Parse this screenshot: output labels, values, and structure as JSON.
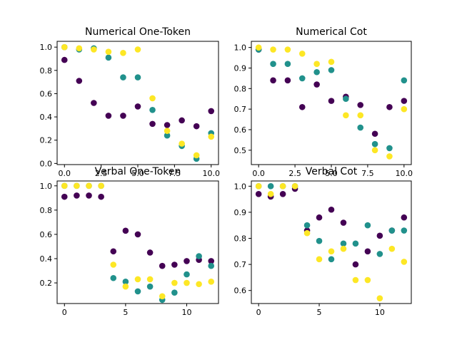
{
  "chart_data": [
    {
      "type": "scatter",
      "title": "Numerical One-Token",
      "xlim": [
        -0.5,
        10.5
      ],
      "ylim": [
        -0.01,
        1.05
      ],
      "xticks": [
        0.0,
        2.5,
        5.0,
        7.5,
        10.0
      ],
      "xtick_labels": [
        "0.0",
        "2.5",
        "5.0",
        "7.5",
        "10.0"
      ],
      "yticks": [
        0.0,
        0.2,
        0.4,
        0.6,
        0.8,
        1.0
      ],
      "ytick_labels": [
        "0.0",
        "0.2",
        "0.4",
        "0.6",
        "0.8",
        "1.0"
      ],
      "series": [
        {
          "color": "#440154",
          "x": [
            0,
            1,
            2,
            3,
            4,
            5,
            6,
            7,
            8,
            9,
            10
          ],
          "y": [
            0.89,
            0.71,
            0.52,
            0.41,
            0.41,
            0.49,
            0.34,
            0.33,
            0.37,
            0.32,
            0.45
          ]
        },
        {
          "color": "#21918c",
          "x": [
            0,
            1,
            2,
            3,
            4,
            5,
            6,
            7,
            8,
            9,
            10
          ],
          "y": [
            1.0,
            0.98,
            0.99,
            0.91,
            0.74,
            0.74,
            0.46,
            0.24,
            0.15,
            0.04,
            0.26
          ]
        },
        {
          "color": "#fde725",
          "x": [
            0,
            1,
            2,
            3,
            4,
            5,
            6,
            7,
            8,
            9,
            10
          ],
          "y": [
            1.0,
            0.99,
            0.98,
            0.96,
            0.95,
            0.98,
            0.56,
            0.28,
            0.17,
            0.07,
            0.23
          ]
        }
      ]
    },
    {
      "type": "scatter",
      "title": "Numerical Cot",
      "xlim": [
        -0.5,
        10.5
      ],
      "ylim": [
        0.43,
        1.03
      ],
      "xticks": [
        0.0,
        2.5,
        5.0,
        7.5,
        10.0
      ],
      "xtick_labels": [
        "0.0",
        "2.5",
        "5.0",
        "7.5",
        "10.0"
      ],
      "yticks": [
        0.5,
        0.6,
        0.7,
        0.8,
        0.9,
        1.0
      ],
      "ytick_labels": [
        "0.5",
        "0.6",
        "0.7",
        "0.8",
        "0.9",
        "1.0"
      ],
      "series": [
        {
          "color": "#440154",
          "x": [
            0,
            1,
            2,
            3,
            4,
            5,
            6,
            7,
            8,
            9,
            10
          ],
          "y": [
            0.99,
            0.84,
            0.84,
            0.71,
            0.82,
            0.74,
            0.76,
            0.72,
            0.58,
            0.71,
            0.74
          ]
        },
        {
          "color": "#21918c",
          "x": [
            0,
            1,
            2,
            3,
            4,
            5,
            6,
            7,
            8,
            9,
            10
          ],
          "y": [
            0.99,
            0.92,
            0.92,
            0.85,
            0.88,
            0.89,
            0.75,
            0.61,
            0.53,
            0.51,
            0.84
          ]
        },
        {
          "color": "#fde725",
          "x": [
            0,
            1,
            2,
            3,
            4,
            5,
            6,
            7,
            8,
            9,
            10
          ],
          "y": [
            1.0,
            0.99,
            0.99,
            0.97,
            0.92,
            0.93,
            0.67,
            0.67,
            0.5,
            0.47,
            0.7
          ]
        }
      ]
    },
    {
      "type": "scatter",
      "title": "Verbal One-Token",
      "xlim": [
        -0.6,
        12.6
      ],
      "ylim": [
        0.03,
        1.04
      ],
      "xticks": [
        0,
        5,
        10
      ],
      "xtick_labels": [
        "0",
        "5",
        "10"
      ],
      "yticks": [
        0.2,
        0.4,
        0.6,
        0.8,
        1.0
      ],
      "ytick_labels": [
        "0.2",
        "0.4",
        "0.6",
        "0.8",
        "1.0"
      ],
      "series": [
        {
          "color": "#440154",
          "x": [
            0,
            1,
            2,
            3,
            4,
            5,
            6,
            7,
            8,
            9,
            10,
            11,
            12
          ],
          "y": [
            0.91,
            0.92,
            0.92,
            0.91,
            0.46,
            0.63,
            0.6,
            0.45,
            0.34,
            0.35,
            0.38,
            0.39,
            0.38
          ]
        },
        {
          "color": "#21918c",
          "x": [
            0,
            1,
            2,
            3,
            4,
            5,
            6,
            7,
            8,
            9,
            10,
            11,
            12
          ],
          "y": [
            1.0,
            1.0,
            1.0,
            1.0,
            0.24,
            0.21,
            0.13,
            0.17,
            0.06,
            0.12,
            0.27,
            0.42,
            0.34
          ]
        },
        {
          "color": "#fde725",
          "x": [
            0,
            1,
            2,
            3,
            4,
            5,
            6,
            7,
            8,
            9,
            10,
            11,
            12
          ],
          "y": [
            1.0,
            1.0,
            1.0,
            1.0,
            0.35,
            0.17,
            0.23,
            0.23,
            0.09,
            0.2,
            0.2,
            0.19,
            0.21
          ]
        }
      ]
    },
    {
      "type": "scatter",
      "title": "Verbal Cot",
      "xlim": [
        -0.6,
        12.6
      ],
      "ylim": [
        0.55,
        1.02
      ],
      "xticks": [
        0,
        5,
        10
      ],
      "xtick_labels": [
        "0",
        "5",
        "10"
      ],
      "yticks": [
        0.6,
        0.7,
        0.8,
        0.9,
        1.0
      ],
      "ytick_labels": [
        "0.6",
        "0.7",
        "0.8",
        "0.9",
        "1.0"
      ],
      "series": [
        {
          "color": "#440154",
          "x": [
            0,
            1,
            2,
            3,
            4,
            5,
            6,
            7,
            8,
            9,
            10,
            11,
            12
          ],
          "y": [
            0.97,
            0.96,
            0.97,
            0.99,
            0.83,
            0.88,
            0.91,
            0.86,
            0.7,
            0.75,
            0.81,
            0.83,
            0.88
          ]
        },
        {
          "color": "#21918c",
          "x": [
            0,
            1,
            2,
            3,
            4,
            5,
            6,
            7,
            8,
            9,
            10,
            11,
            12
          ],
          "y": [
            1.0,
            1.0,
            1.0,
            1.0,
            0.85,
            0.79,
            0.72,
            0.78,
            0.78,
            0.85,
            0.74,
            0.83,
            0.83
          ]
        },
        {
          "color": "#fde725",
          "x": [
            0,
            1,
            2,
            3,
            4,
            5,
            6,
            7,
            8,
            9,
            10,
            11,
            12
          ],
          "y": [
            1.0,
            0.97,
            1.0,
            1.0,
            0.82,
            0.72,
            0.75,
            0.76,
            0.64,
            0.64,
            0.57,
            0.76,
            0.71
          ]
        }
      ]
    }
  ]
}
